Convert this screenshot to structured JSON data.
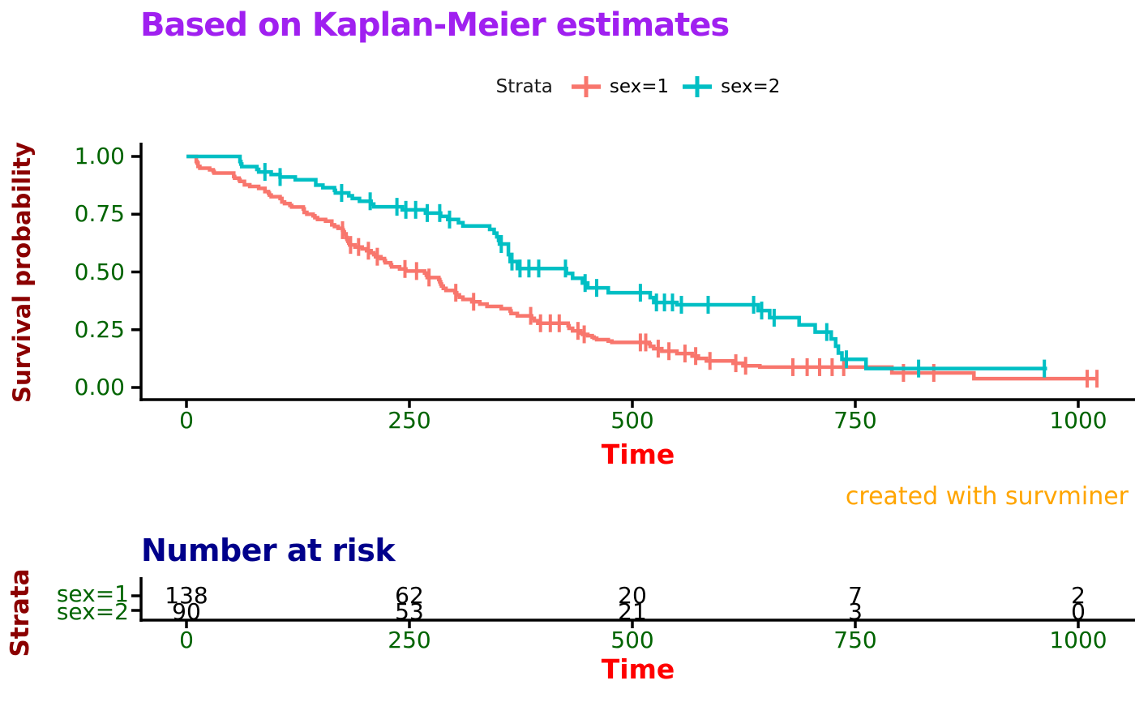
{
  "header": {
    "title": "Based on Kaplan-Meier estimates"
  },
  "legend": {
    "title": "Strata",
    "items": [
      {
        "label": "sex=1",
        "color": "#F8766D"
      },
      {
        "label": "sex=2",
        "color": "#00BFC4"
      }
    ]
  },
  "caption": {
    "text": "created with survminer"
  },
  "chart_data": {
    "type": "line",
    "subtype": "kaplan-meier-step-curves",
    "title": "Based on Kaplan-Meier estimates",
    "xlabel": "Time",
    "ylabel": "Survival probability",
    "xlim": [
      0,
      1022
    ],
    "ylim": [
      0,
      1
    ],
    "grid": "off",
    "legend_position": "top",
    "x_ticks": [
      0,
      250,
      500,
      750,
      1000
    ],
    "y_ticks": [
      {
        "label": "1.00",
        "value": 1.0
      },
      {
        "label": "0.75",
        "value": 0.75
      },
      {
        "label": "0.50",
        "value": 0.5
      },
      {
        "label": "0.25",
        "value": 0.25
      },
      {
        "label": "0.00",
        "value": 0.0
      }
    ],
    "series": [
      {
        "name": "sex=1",
        "color": "#F8766D",
        "end_time": 1022,
        "steps": [
          [
            0,
            1
          ],
          [
            11,
            0.978
          ],
          [
            12,
            0.971
          ],
          [
            13,
            0.957
          ],
          [
            15,
            0.949
          ],
          [
            26,
            0.942
          ],
          [
            30,
            0.935
          ],
          [
            31,
            0.928
          ],
          [
            53,
            0.913
          ],
          [
            54,
            0.906
          ],
          [
            59,
            0.899
          ],
          [
            60,
            0.892
          ],
          [
            65,
            0.877
          ],
          [
            71,
            0.87
          ],
          [
            81,
            0.862
          ],
          [
            88,
            0.848
          ],
          [
            92,
            0.841
          ],
          [
            93,
            0.833
          ],
          [
            95,
            0.826
          ],
          [
            105,
            0.818
          ],
          [
            107,
            0.803
          ],
          [
            110,
            0.796
          ],
          [
            116,
            0.788
          ],
          [
            118,
            0.781
          ],
          [
            131,
            0.773
          ],
          [
            132,
            0.758
          ],
          [
            135,
            0.75
          ],
          [
            142,
            0.743
          ],
          [
            144,
            0.735
          ],
          [
            147,
            0.727
          ],
          [
            156,
            0.72
          ],
          [
            163,
            0.704
          ],
          [
            166,
            0.697
          ],
          [
            170,
            0.689
          ],
          [
            175,
            0.681
          ],
          [
            176,
            0.673
          ],
          [
            177,
            0.665
          ],
          [
            179,
            0.649
          ],
          [
            180,
            0.641
          ],
          [
            181,
            0.633
          ],
          [
            182,
            0.625
          ],
          [
            183,
            0.617
          ],
          [
            189,
            0.608
          ],
          [
            197,
            0.6
          ],
          [
            202,
            0.592
          ],
          [
            207,
            0.583
          ],
          [
            210,
            0.575
          ],
          [
            212,
            0.566
          ],
          [
            218,
            0.558
          ],
          [
            222,
            0.549
          ],
          [
            223,
            0.54
          ],
          [
            229,
            0.531
          ],
          [
            230,
            0.522
          ],
          [
            239,
            0.513
          ],
          [
            246,
            0.504
          ],
          [
            267,
            0.495
          ],
          [
            269,
            0.486
          ],
          [
            270,
            0.476
          ],
          [
            283,
            0.467
          ],
          [
            284,
            0.458
          ],
          [
            285,
            0.448
          ],
          [
            286,
            0.439
          ],
          [
            288,
            0.429
          ],
          [
            291,
            0.42
          ],
          [
            301,
            0.41
          ],
          [
            303,
            0.401
          ],
          [
            306,
            0.391
          ],
          [
            310,
            0.381
          ],
          [
            320,
            0.371
          ],
          [
            329,
            0.361
          ],
          [
            337,
            0.351
          ],
          [
            353,
            0.341
          ],
          [
            363,
            0.331
          ],
          [
            364,
            0.32
          ],
          [
            371,
            0.31
          ],
          [
            387,
            0.299
          ],
          [
            390,
            0.289
          ],
          [
            394,
            0.278
          ],
          [
            428,
            0.267
          ],
          [
            429,
            0.256
          ],
          [
            433,
            0.245
          ],
          [
            442,
            0.236
          ],
          [
            444,
            0.23
          ],
          [
            450,
            0.224
          ],
          [
            455,
            0.218
          ],
          [
            457,
            0.213
          ],
          [
            460,
            0.207
          ],
          [
            473,
            0.201
          ],
          [
            477,
            0.195
          ],
          [
            519,
            0.189
          ],
          [
            520,
            0.178
          ],
          [
            524,
            0.168
          ],
          [
            533,
            0.157
          ],
          [
            550,
            0.147
          ],
          [
            567,
            0.136
          ],
          [
            574,
            0.126
          ],
          [
            583,
            0.115
          ],
          [
            613,
            0.105
          ],
          [
            624,
            0.094
          ],
          [
            643,
            0.088
          ],
          [
            791,
            0.063
          ],
          [
            883,
            0.038
          ]
        ],
        "censor_times": [
          175,
          184,
          193,
          204,
          214,
          245,
          258,
          272,
          302,
          322,
          386,
          397,
          408,
          418,
          439,
          446,
          509,
          515,
          529,
          541,
          559,
          571,
          587,
          616,
          627,
          680,
          696,
          710,
          724,
          737,
          804,
          838,
          1010,
          1021
        ]
      },
      {
        "name": "sex=2",
        "color": "#00BFC4",
        "end_time": 965,
        "steps": [
          [
            0,
            1
          ],
          [
            60,
            0.978
          ],
          [
            61,
            0.967
          ],
          [
            62,
            0.956
          ],
          [
            79,
            0.944
          ],
          [
            81,
            0.933
          ],
          [
            95,
            0.922
          ],
          [
            105,
            0.911
          ],
          [
            122,
            0.899
          ],
          [
            145,
            0.876
          ],
          [
            153,
            0.865
          ],
          [
            166,
            0.853
          ],
          [
            167,
            0.842
          ],
          [
            182,
            0.83
          ],
          [
            186,
            0.818
          ],
          [
            194,
            0.806
          ],
          [
            207,
            0.794
          ],
          [
            210,
            0.782
          ],
          [
            242,
            0.769
          ],
          [
            268,
            0.755
          ],
          [
            285,
            0.741
          ],
          [
            293,
            0.727
          ],
          [
            305,
            0.713
          ],
          [
            310,
            0.699
          ],
          [
            340,
            0.684
          ],
          [
            345,
            0.668
          ],
          [
            348,
            0.652
          ],
          [
            350,
            0.637
          ],
          [
            351,
            0.621
          ],
          [
            361,
            0.575
          ],
          [
            363,
            0.545
          ],
          [
            371,
            0.515
          ],
          [
            426,
            0.494
          ],
          [
            433,
            0.473
          ],
          [
            444,
            0.452
          ],
          [
            450,
            0.431
          ],
          [
            473,
            0.41
          ],
          [
            520,
            0.389
          ],
          [
            524,
            0.368
          ],
          [
            550,
            0.358
          ],
          [
            641,
            0.333
          ],
          [
            654,
            0.302
          ],
          [
            687,
            0.271
          ],
          [
            705,
            0.24
          ],
          [
            723,
            0.21
          ],
          [
            728,
            0.179
          ],
          [
            731,
            0.149
          ],
          [
            735,
            0.122
          ],
          [
            762,
            0.082
          ]
        ],
        "censor_times": [
          88,
          105,
          174,
          206,
          236,
          246,
          257,
          270,
          284,
          295,
          353,
          365,
          374,
          384,
          395,
          425,
          447,
          460,
          509,
          527,
          536,
          545,
          555,
          585,
          636,
          645,
          659,
          718,
          740,
          821,
          962
        ]
      }
    ],
    "risk_table": {
      "title": "Number at risk",
      "strata_label": "Strata",
      "xlabel": "Time",
      "times": [
        0,
        250,
        500,
        750,
        1000
      ],
      "rows": [
        {
          "label": "sex=1",
          "counts": [
            138,
            62,
            20,
            7,
            2
          ]
        },
        {
          "label": "sex=2",
          "counts": [
            90,
            53,
            21,
            3,
            0
          ]
        }
      ]
    },
    "colors": {
      "title": "#A020F0",
      "y_label": "#8B0000",
      "tick_labels": "#006400",
      "time_label": "#FF0000",
      "caption": "#FFA500",
      "risk_title": "#00008B",
      "strata_label": "#8B0000",
      "axis": "#000000"
    }
  }
}
